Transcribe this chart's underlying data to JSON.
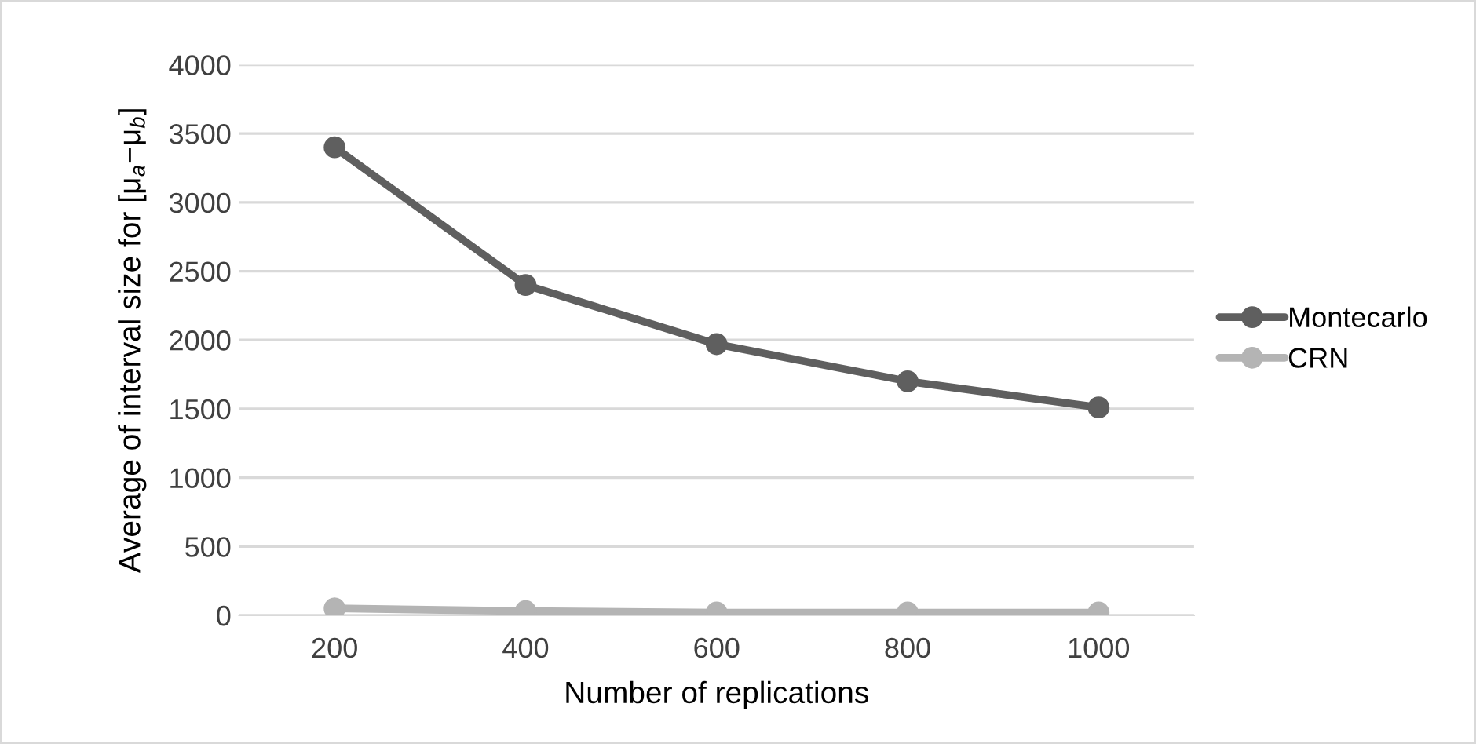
{
  "chart_data": {
    "type": "line",
    "xlabel": "Number of replications",
    "ylabel": "Average of interval size for [μ$_{a}$−μ$_{b}$]",
    "categories": [
      "200",
      "400",
      "600",
      "800",
      "1000"
    ],
    "series": [
      {
        "name": "Montecarlo",
        "color": "#5f5f5f",
        "values": [
          3400,
          2400,
          1970,
          1700,
          1510
        ]
      },
      {
        "name": "CRN",
        "color": "#b4b4b4",
        "values": [
          50,
          30,
          20,
          20,
          20
        ]
      }
    ],
    "ylim": [
      0,
      4000
    ],
    "yticks": [
      0,
      500,
      1000,
      1500,
      2000,
      2500,
      3000,
      3500,
      4000
    ],
    "grid": "y",
    "legend": "right",
    "marker": "circle",
    "line_style": "solid"
  }
}
